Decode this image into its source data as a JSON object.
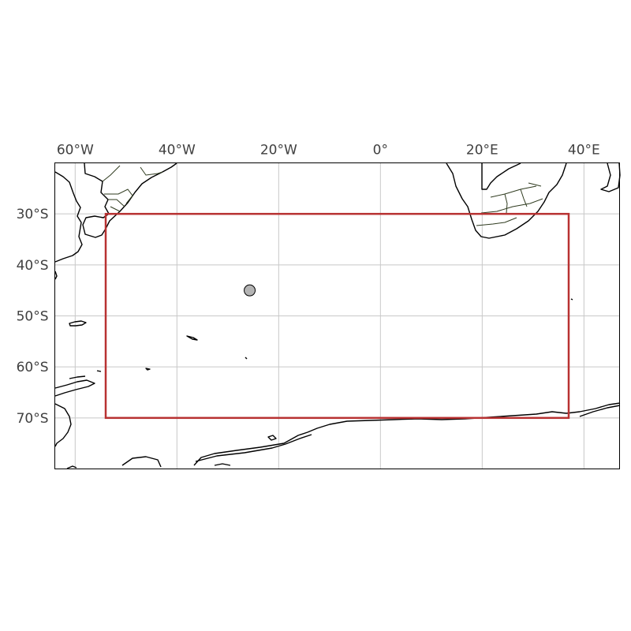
{
  "map": {
    "projection": "PlateCarree",
    "extent": {
      "lon_min": -64,
      "lon_max": 47,
      "lat_min": -80,
      "lat_max": -20
    },
    "gridlines": true,
    "lon_ticks": [
      {
        "value": -60,
        "label": "60°W"
      },
      {
        "value": -40,
        "label": "40°W"
      },
      {
        "value": -20,
        "label": "20°W"
      },
      {
        "value": 0,
        "label": "0°"
      },
      {
        "value": 20,
        "label": "20°E"
      },
      {
        "value": 40,
        "label": "40°E"
      }
    ],
    "lat_ticks": [
      {
        "value": -30,
        "label": "30°S"
      },
      {
        "value": -40,
        "label": "40°S"
      },
      {
        "value": -50,
        "label": "50°S"
      },
      {
        "value": -60,
        "label": "60°S"
      },
      {
        "value": -70,
        "label": "70°S"
      }
    ],
    "region_box": {
      "lon_min": -54,
      "lon_max": 37,
      "lat_min": -70,
      "lat_max": -30,
      "color": "#b83232"
    },
    "point_marker": {
      "lon": -25.7,
      "lat": -45,
      "fill": "#b4b4b4",
      "stroke": "#000000"
    }
  }
}
